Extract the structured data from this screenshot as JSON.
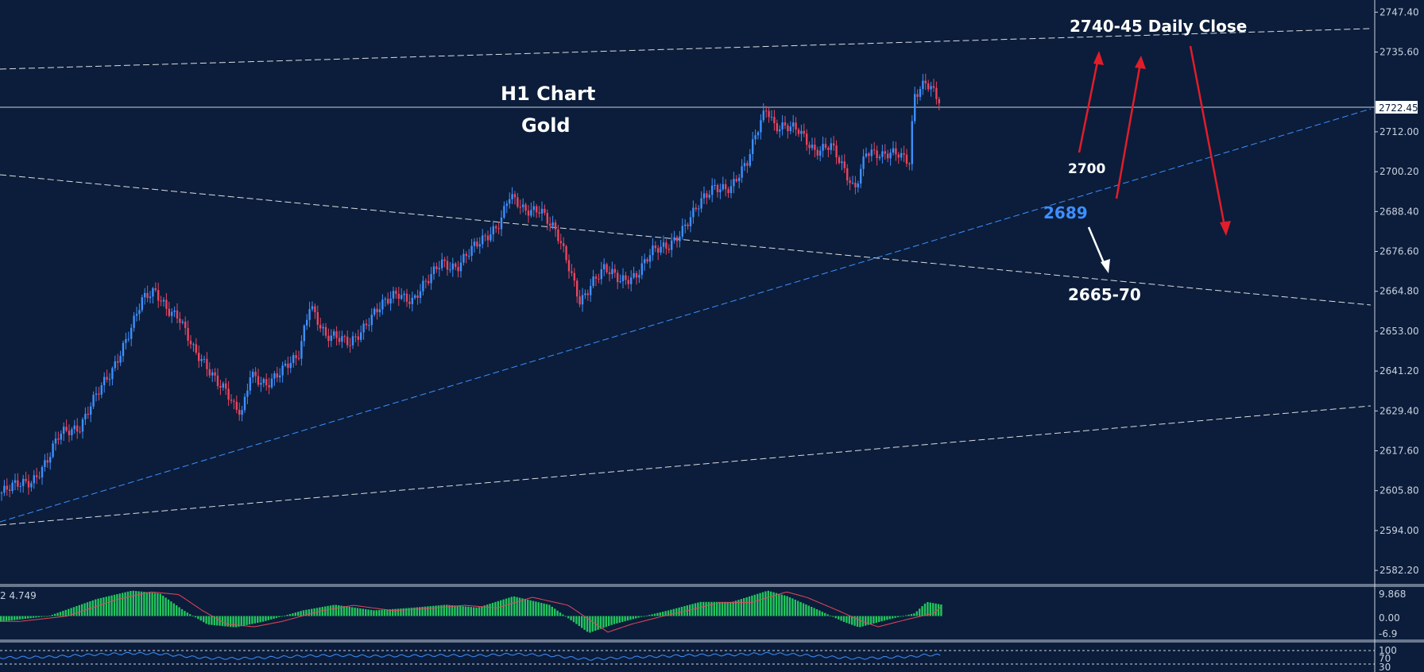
{
  "chart_data": {
    "type": "candlestick",
    "instrument_title": "Gold",
    "timeframe_title": "H1 Chart",
    "y_axis": {
      "ticks": [
        "2747.40",
        "2735.60",
        "2712.00",
        "2700.20",
        "2688.40",
        "2676.60",
        "2664.80",
        "2653.00",
        "2641.20",
        "2629.40",
        "2617.60",
        "2605.80",
        "2594.00",
        "2582.20"
      ],
      "range": [
        2578,
        2751
      ],
      "current_price_label": "2722.45",
      "current_price": 2722.45
    },
    "annotations": {
      "daily_close": "2740-45 Daily Close",
      "support_2700": "2700",
      "support_2689": "2689",
      "target_2665": "2665-70"
    },
    "price_path": [
      [
        0,
        2605
      ],
      [
        40,
        2609
      ],
      [
        60,
        2615
      ],
      [
        75,
        2622
      ],
      [
        100,
        2625
      ],
      [
        115,
        2632
      ],
      [
        140,
        2640
      ],
      [
        160,
        2652
      ],
      [
        178,
        2662
      ],
      [
        195,
        2664
      ],
      [
        210,
        2660
      ],
      [
        225,
        2658
      ],
      [
        245,
        2646
      ],
      [
        265,
        2641
      ],
      [
        285,
        2636
      ],
      [
        295,
        2630
      ],
      [
        305,
        2628
      ],
      [
        315,
        2640
      ],
      [
        335,
        2638
      ],
      [
        355,
        2641
      ],
      [
        375,
        2645
      ],
      [
        390,
        2662
      ],
      [
        410,
        2651
      ],
      [
        440,
        2650
      ],
      [
        460,
        2655
      ],
      [
        480,
        2660
      ],
      [
        500,
        2665
      ],
      [
        520,
        2662
      ],
      [
        540,
        2668
      ],
      [
        555,
        2674
      ],
      [
        575,
        2672
      ],
      [
        595,
        2677
      ],
      [
        615,
        2682
      ],
      [
        630,
        2686
      ],
      [
        640,
        2693
      ],
      [
        660,
        2688
      ],
      [
        680,
        2690
      ],
      [
        700,
        2682
      ],
      [
        715,
        2672
      ],
      [
        730,
        2662
      ],
      [
        745,
        2668
      ],
      [
        760,
        2671
      ],
      [
        780,
        2668
      ],
      [
        800,
        2670
      ],
      [
        820,
        2676
      ],
      [
        840,
        2678
      ],
      [
        860,
        2684
      ],
      [
        880,
        2690
      ],
      [
        900,
        2696
      ],
      [
        920,
        2696
      ],
      [
        940,
        2702
      ],
      [
        955,
        2714
      ],
      [
        965,
        2720
      ],
      [
        975,
        2714
      ],
      [
        990,
        2713
      ],
      [
        1005,
        2712
      ],
      [
        1025,
        2707
      ],
      [
        1045,
        2708
      ],
      [
        1060,
        2701
      ],
      [
        1075,
        2695
      ],
      [
        1090,
        2707
      ],
      [
        1110,
        2704
      ],
      [
        1130,
        2706
      ],
      [
        1145,
        2704
      ],
      [
        1150,
        2723
      ],
      [
        1165,
        2726
      ],
      [
        1185,
        2720
      ]
    ],
    "macd": {
      "label": "2 4.749",
      "ticks": [
        "9.868",
        "0.00",
        "-6.9"
      ],
      "profile": [
        [
          0,
          -2
        ],
        [
          60,
          0
        ],
        [
          120,
          6
        ],
        [
          165,
          9
        ],
        [
          200,
          8
        ],
        [
          230,
          2
        ],
        [
          260,
          -3
        ],
        [
          295,
          -4
        ],
        [
          330,
          -2
        ],
        [
          380,
          2
        ],
        [
          420,
          4
        ],
        [
          470,
          2
        ],
        [
          520,
          3
        ],
        [
          560,
          4
        ],
        [
          600,
          3
        ],
        [
          645,
          7
        ],
        [
          690,
          4
        ],
        [
          720,
          -2
        ],
        [
          740,
          -6
        ],
        [
          770,
          -3
        ],
        [
          810,
          0
        ],
        [
          840,
          2
        ],
        [
          880,
          5
        ],
        [
          920,
          5
        ],
        [
          965,
          9
        ],
        [
          990,
          7
        ],
        [
          1030,
          2
        ],
        [
          1060,
          -2
        ],
        [
          1080,
          -4
        ],
        [
          1120,
          -1
        ],
        [
          1150,
          1
        ],
        [
          1165,
          5
        ],
        [
          1185,
          4
        ]
      ]
    },
    "rsi": {
      "ticks": [
        "100",
        "70",
        "30"
      ]
    },
    "colors": {
      "bull": "#3d8fff",
      "bear": "#e8455e",
      "macd_hist": "#22c55e",
      "signal": "#e8455e",
      "support_line": "#3d8fff",
      "arrow_red": "#e11d2a",
      "arrow_white": "#ffffff"
    }
  }
}
